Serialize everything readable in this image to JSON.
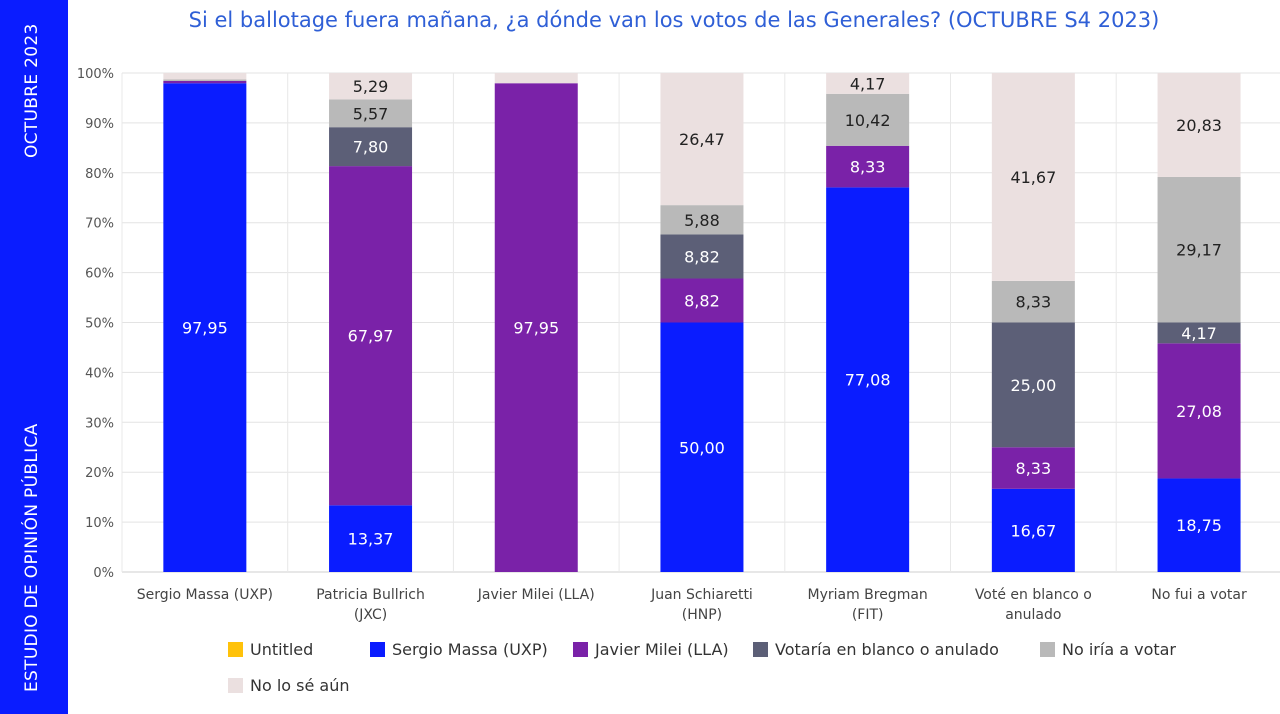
{
  "sidebar": {
    "top_text": "OCTUBRE 2023",
    "bottom_text": "ESTUDIO DE OPINIÓN PÚBLICA"
  },
  "colors": {
    "sidebar": "#0a1cff",
    "massa": "#0a1cff",
    "milei": "#7a22a8",
    "blanco": "#5c5f77",
    "no_votar": "#b9b9b9",
    "no_se": "#ebe0e0",
    "untitled": "#ffc20a"
  },
  "chart_data": {
    "type": "bar",
    "stacked": true,
    "title": "Si el ballotage fuera mañana, ¿a dónde van los votos de las Generales? (OCTUBRE S4 2023)",
    "categories": [
      "Sergio Massa (UXP)",
      "Patricia Bullrich (JXC)",
      "Javier Milei (LLA)",
      "Juan Schiaretti (HNP)",
      "Myriam Bregman (FIT)",
      "Voté en blanco o anulado",
      "No fui a votar"
    ],
    "category_lines": [
      [
        "Sergio Massa (UXP)"
      ],
      [
        "Patricia Bullrich",
        "(JXC)"
      ],
      [
        "Javier Milei (LLA)"
      ],
      [
        "Juan Schiaretti",
        "(HNP)"
      ],
      [
        "Myriam Bregman",
        "(FIT)"
      ],
      [
        "Voté en blanco o",
        "anulado"
      ],
      [
        "No fui a votar"
      ]
    ],
    "ylim": [
      0,
      100
    ],
    "yticks": [
      "0%",
      "10%",
      "20%",
      "30%",
      "40%",
      "50%",
      "60%",
      "70%",
      "80%",
      "90%",
      "100%"
    ],
    "series": [
      {
        "name": "Untitled",
        "color": "#ffc20a",
        "values": [
          0,
          0,
          0,
          0,
          0,
          0,
          0
        ],
        "labels": [
          "",
          "",
          "",
          "",
          "",
          "",
          ""
        ]
      },
      {
        "name": "Sergio Massa (UXP)",
        "color": "#0a1cff",
        "values": [
          97.95,
          13.37,
          0,
          50.0,
          77.08,
          16.67,
          18.75
        ],
        "labels": [
          "97,95",
          "13,37",
          "",
          "50,00",
          "77,08",
          "16,67",
          "18,75"
        ]
      },
      {
        "name": "Javier Milei (LLA)",
        "color": "#7a22a8",
        "values": [
          0.45,
          67.97,
          97.95,
          8.82,
          8.33,
          8.33,
          27.08
        ],
        "labels": [
          "",
          "67,97",
          "97,95",
          "8,82",
          "8,33",
          "8,33",
          "27,08"
        ]
      },
      {
        "name": "Votaría en blanco o anulado",
        "color": "#5c5f77",
        "values": [
          0,
          7.8,
          0,
          8.82,
          0,
          25.0,
          4.17
        ],
        "labels": [
          "",
          "7,80",
          "",
          "8,82",
          "",
          "25,00",
          "4,17"
        ]
      },
      {
        "name": "No iría a votar",
        "color": "#b9b9b9",
        "values": [
          0.3,
          5.57,
          0,
          5.88,
          10.42,
          8.33,
          29.17
        ],
        "labels": [
          "",
          "5,57",
          "",
          "5,88",
          "10,42",
          "8,33",
          "29,17"
        ]
      },
      {
        "name": "No lo sé aún",
        "color": "#ebe0e0",
        "values": [
          1.3,
          5.29,
          2.05,
          26.47,
          4.17,
          41.67,
          20.83
        ],
        "labels": [
          "",
          "5,29",
          "",
          "26,47",
          "4,17",
          "41,67",
          "20,83"
        ]
      }
    ]
  }
}
